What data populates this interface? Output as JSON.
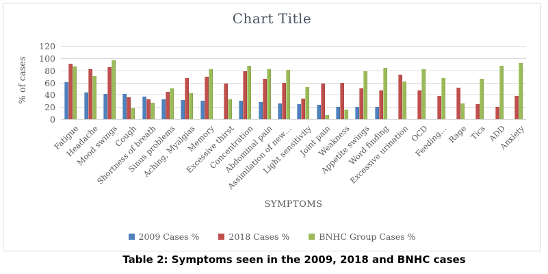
{
  "caption": {
    "text": "Table 2: Symptoms seen in the 2009, 2018 and BNHC cases"
  },
  "colors": {
    "series_blue": "#4F81BD",
    "series_red": "#C0504D",
    "series_green": "#9BBB59",
    "gridline": "#D9D9D9",
    "axis_text": "#595959",
    "title_text": "#4A5360",
    "chart_border": "#D9D9D9"
  },
  "chart_data": {
    "type": "bar",
    "title": "Chart Title",
    "xlabel": "SYMPTOMS",
    "ylabel": "% of cases",
    "ylim": [
      0,
      120
    ],
    "yticks": [
      0,
      20,
      40,
      60,
      80,
      100,
      120
    ],
    "grid": true,
    "legend_position": "bottom",
    "categories": [
      "Fatigue",
      "Headache",
      "Mood swings",
      "Cough",
      "Shortness of breath",
      "Sinus problems",
      "Aching, Myalgias",
      "Memory",
      "Excessive thirst",
      "Concentration",
      "Abdominal pain",
      "Assimilation of new…",
      "Light sensitivity",
      "Joint pain",
      "Weakness",
      "Appetite swings",
      "Word finding",
      "Excessive urination",
      "OCD",
      "Feeding…",
      "Rage",
      "Tics",
      "ADD",
      "Anxiety"
    ],
    "series": [
      {
        "name": "2009 Cases %",
        "color": "#4F81BD",
        "values": [
          61,
          44,
          42,
          41,
          37,
          33,
          31,
          30,
          0,
          30,
          28,
          26,
          25,
          24,
          20,
          20,
          20,
          0,
          0,
          0,
          0,
          0,
          0,
          0
        ]
      },
      {
        "name": "2018 Cases %",
        "color": "#C0504D",
        "values": [
          91,
          82,
          85,
          36,
          33,
          45,
          67,
          70,
          58,
          79,
          66,
          60,
          34,
          58,
          60,
          50,
          47,
          73,
          47,
          38,
          52,
          25,
          20,
          38
        ]
      },
      {
        "name": "BNHC Group Cases  %",
        "color": "#9BBB59",
        "values": [
          86,
          71,
          97,
          18,
          27,
          51,
          43,
          82,
          32,
          87,
          82,
          81,
          53,
          7,
          16,
          78,
          84,
          62,
          82,
          67,
          26,
          66,
          88,
          92
        ]
      }
    ]
  }
}
